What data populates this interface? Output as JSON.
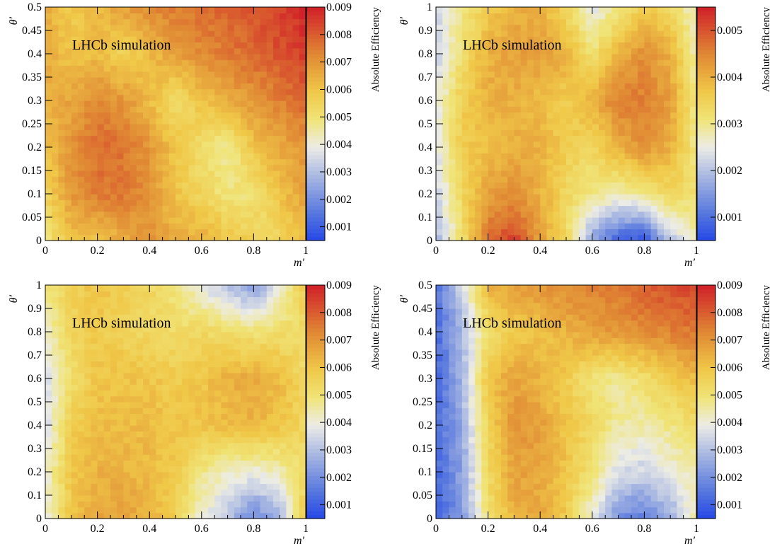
{
  "chart_data": [
    {
      "type": "heatmap",
      "panel": "top-left",
      "annotation": "LHCb simulation",
      "xlabel": "m′",
      "ylabel": "θ′",
      "colorbar_label": "Absolute Efficiency",
      "xlim": [
        0,
        1
      ],
      "ylim": [
        0,
        0.5
      ],
      "xticks": [
        "0",
        "0.2",
        "0.4",
        "0.6",
        "0.8",
        "1"
      ],
      "yticks": [
        "0",
        "0.05",
        "0.1",
        "0.15",
        "0.2",
        "0.25",
        "0.3",
        "0.35",
        "0.4",
        "0.45",
        "0.5"
      ],
      "zlim": [
        0.0005,
        0.009
      ],
      "zticks": [
        "0.001",
        "0.002",
        "0.003",
        "0.004",
        "0.005",
        "0.006",
        "0.007",
        "0.008",
        "0.009"
      ],
      "zticks_values": [
        0.001,
        0.002,
        0.003,
        0.004,
        0.005,
        0.006,
        0.007,
        0.008,
        0.009
      ],
      "grid": [
        [
          0.005,
          0.006,
          0.006,
          0.0065,
          0.007,
          0.0065,
          0.0065,
          0.006,
          0.0056,
          0.0054,
          0.0062
        ],
        [
          0.0055,
          0.007,
          0.0075,
          0.0076,
          0.007,
          0.006,
          0.0055,
          0.0049,
          0.005,
          0.006,
          0.0068
        ],
        [
          0.006,
          0.007,
          0.0078,
          0.0076,
          0.007,
          0.006,
          0.0052,
          0.0046,
          0.006,
          0.0066,
          0.007
        ],
        [
          0.0064,
          0.0067,
          0.0073,
          0.007,
          0.0062,
          0.0052,
          0.006,
          0.0065,
          0.007,
          0.0074,
          0.0078
        ],
        [
          0.0065,
          0.006,
          0.0062,
          0.0055,
          0.0062,
          0.0068,
          0.0072,
          0.0075,
          0.0078,
          0.0082,
          0.0086
        ],
        [
          0.0066,
          0.0058,
          0.0062,
          0.0068,
          0.0072,
          0.0075,
          0.0077,
          0.0079,
          0.0082,
          0.0085,
          0.0088
        ]
      ]
    },
    {
      "type": "heatmap",
      "panel": "top-right",
      "annotation": "LHCb simulation",
      "xlabel": "m′",
      "ylabel": "θ′",
      "colorbar_label": "Absolute Efficiency",
      "xlim": [
        0,
        1
      ],
      "ylim": [
        0,
        1
      ],
      "xticks": [
        "0",
        "0.2",
        "0.4",
        "0.6",
        "0.8",
        "1"
      ],
      "yticks": [
        "0",
        "0.1",
        "0.2",
        "0.3",
        "0.4",
        "0.5",
        "0.6",
        "0.7",
        "0.8",
        "0.9",
        "1"
      ],
      "zlim": [
        0.0005,
        0.0055
      ],
      "zticks": [
        "0.001",
        "0.002",
        "0.003",
        "0.004",
        "0.005"
      ],
      "zticks_values": [
        0.001,
        0.002,
        0.003,
        0.004,
        0.005
      ],
      "grid": [
        [
          0.0018,
          0.0032,
          0.0048,
          0.0052,
          0.0042,
          0.0034,
          0.0016,
          0.0008,
          0.0006,
          0.002,
          0.0028
        ],
        [
          0.0022,
          0.0034,
          0.0042,
          0.0044,
          0.004,
          0.0034,
          0.003,
          0.0028,
          0.003,
          0.0034,
          0.0032
        ],
        [
          0.0024,
          0.0036,
          0.0038,
          0.004,
          0.004,
          0.0036,
          0.0034,
          0.004,
          0.0044,
          0.004,
          0.003
        ],
        [
          0.0024,
          0.0036,
          0.004,
          0.004,
          0.0038,
          0.0036,
          0.004,
          0.0046,
          0.0046,
          0.0042,
          0.003
        ],
        [
          0.0022,
          0.0032,
          0.004,
          0.0042,
          0.0042,
          0.004,
          0.0032,
          0.004,
          0.0044,
          0.004,
          0.0028
        ],
        [
          0.0022,
          0.003,
          0.0036,
          0.004,
          0.004,
          0.0034,
          0.0024,
          0.003,
          0.0036,
          0.0034,
          0.0026
        ]
      ]
    },
    {
      "type": "heatmap",
      "panel": "bottom-left",
      "annotation": "LHCb simulation",
      "xlabel": "m′",
      "ylabel": "θ′",
      "colorbar_label": "Absolute Efficiency",
      "xlim": [
        0,
        1
      ],
      "ylim": [
        0,
        1
      ],
      "xticks": [
        "0",
        "0.2",
        "0.4",
        "0.6",
        "0.8",
        "1"
      ],
      "yticks": [
        "0",
        "0.1",
        "0.2",
        "0.3",
        "0.4",
        "0.5",
        "0.6",
        "0.7",
        "0.8",
        "0.9",
        "1"
      ],
      "zlim": [
        0.0005,
        0.009
      ],
      "zticks": [
        "0.001",
        "0.002",
        "0.003",
        "0.004",
        "0.005",
        "0.006",
        "0.007",
        "0.008",
        "0.009"
      ],
      "zticks_values": [
        0.001,
        0.002,
        0.003,
        0.004,
        0.005,
        0.006,
        0.007,
        0.008,
        0.009
      ],
      "grid": [
        [
          0.004,
          0.006,
          0.0066,
          0.0068,
          0.0064,
          0.0058,
          0.004,
          0.003,
          0.0018,
          0.0026,
          0.006
        ],
        [
          0.004,
          0.006,
          0.0064,
          0.0064,
          0.0062,
          0.0058,
          0.0048,
          0.0042,
          0.004,
          0.0044,
          0.0052
        ],
        [
          0.0036,
          0.0058,
          0.0062,
          0.0062,
          0.0062,
          0.006,
          0.006,
          0.0062,
          0.0064,
          0.006,
          0.0054
        ],
        [
          0.0034,
          0.0052,
          0.006,
          0.006,
          0.006,
          0.0058,
          0.006,
          0.0064,
          0.0066,
          0.0062,
          0.0054
        ],
        [
          0.004,
          0.0056,
          0.0058,
          0.0056,
          0.0054,
          0.0052,
          0.0054,
          0.0052,
          0.005,
          0.0052,
          0.0052
        ],
        [
          0.005,
          0.0056,
          0.006,
          0.0058,
          0.0054,
          0.005,
          0.0038,
          0.003,
          0.0022,
          0.004,
          0.006
        ]
      ]
    },
    {
      "type": "heatmap",
      "panel": "bottom-right",
      "annotation": "LHCb simulation",
      "xlabel": "m′",
      "ylabel": "θ′",
      "colorbar_label": "Absolute Efficiency",
      "xlim": [
        0,
        1
      ],
      "ylim": [
        0,
        0.5
      ],
      "xticks": [
        "0",
        "0.2",
        "0.4",
        "0.6",
        "0.8",
        "1"
      ],
      "yticks": [
        "0",
        "0.05",
        "0.1",
        "0.15",
        "0.2",
        "0.25",
        "0.3",
        "0.35",
        "0.4",
        "0.45",
        "0.5"
      ],
      "zlim": [
        0.0005,
        0.009
      ],
      "zticks": [
        "0.001",
        "0.002",
        "0.003",
        "0.004",
        "0.005",
        "0.006",
        "0.007",
        "0.008",
        "0.009"
      ],
      "zticks_values": [
        0.001,
        0.002,
        0.003,
        0.004,
        0.005,
        0.006,
        0.007,
        0.008,
        0.009
      ],
      "grid": [
        [
          0.0012,
          0.0022,
          0.005,
          0.0064,
          0.0066,
          0.0058,
          0.004,
          0.002,
          0.0016,
          0.0026,
          0.0045
        ],
        [
          0.0012,
          0.0024,
          0.0054,
          0.0068,
          0.0066,
          0.006,
          0.005,
          0.0036,
          0.0034,
          0.004,
          0.0045
        ],
        [
          0.0012,
          0.0026,
          0.0056,
          0.007,
          0.0068,
          0.006,
          0.0054,
          0.0046,
          0.0044,
          0.0048,
          0.0052
        ],
        [
          0.0012,
          0.0028,
          0.006,
          0.0068,
          0.0064,
          0.0058,
          0.005,
          0.0046,
          0.0052,
          0.0058,
          0.0062
        ],
        [
          0.0012,
          0.0028,
          0.0052,
          0.0058,
          0.006,
          0.0064,
          0.0068,
          0.007,
          0.0072,
          0.0074,
          0.0076
        ],
        [
          0.0014,
          0.0036,
          0.0064,
          0.0068,
          0.007,
          0.0072,
          0.0074,
          0.0076,
          0.008,
          0.0082,
          0.0084
        ]
      ]
    }
  ]
}
